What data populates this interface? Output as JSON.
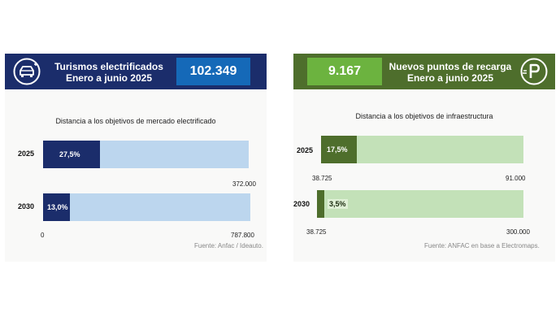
{
  "left": {
    "header": {
      "title_line1": "Turismos electrificados",
      "title_line2": "Enero a junio 2025",
      "value": "102.349",
      "icon": "electric-car-icon"
    },
    "subtitle": "Distancia a los objetivos de mercado electrificado",
    "source": "Fuente: Anfac / Ideauto."
  },
  "right": {
    "header": {
      "title_line1": "Nuevos puntos de recarga",
      "title_line2": "Enero a junio 2025",
      "value": "9.167",
      "icon": "charging-parking-icon"
    },
    "subtitle": "Distancia a los objetivos de infraestructura",
    "source": "Fuente: ANFAC en base a Electromaps."
  },
  "colors": {
    "left_header": "#1b2d6b",
    "left_value_box": "#1569b8",
    "left_fill": "#1b2d6b",
    "left_track": "#bcd6ee",
    "right_header": "#4e6e2c",
    "right_value_box": "#6cb33f",
    "right_fill": "#4e6e2c",
    "right_track": "#c3e1b8"
  },
  "chart_data": [
    {
      "type": "bar",
      "orientation": "horizontal",
      "title": "Distancia a los objetivos de mercado electrificado",
      "categories": [
        "2025",
        "2030"
      ],
      "values": [
        27.5,
        13.0
      ],
      "value_labels": [
        "27,5%",
        "13,0%"
      ],
      "axis_start_labels": [
        "",
        "0"
      ],
      "axis_end_labels": [
        "372.000",
        "787.800"
      ],
      "axis_start_label_shown": [
        false,
        true
      ],
      "xlim": [
        0,
        100
      ]
    },
    {
      "type": "bar",
      "orientation": "horizontal",
      "title": "Distancia a los objetivos de infraestructura",
      "categories": [
        "2025",
        "2030"
      ],
      "values": [
        17.5,
        3.5
      ],
      "value_labels": [
        "17,5%",
        "3,5%"
      ],
      "axis_start_labels": [
        "38.725",
        "38.725"
      ],
      "axis_end_labels": [
        "91.000",
        "300.000"
      ],
      "xlim": [
        0,
        100
      ]
    }
  ]
}
